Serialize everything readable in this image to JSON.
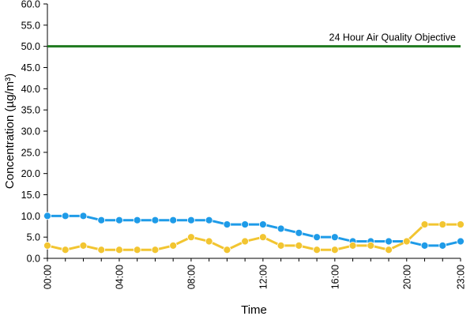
{
  "chart_data": {
    "type": "line",
    "xlabel": "Time",
    "ylabel": "Concentration (µg/m³)",
    "ylim": [
      0,
      60
    ],
    "yticks": [
      "0.0",
      "5.0",
      "10.0",
      "15.0",
      "20.0",
      "25.0",
      "30.0",
      "35.0",
      "40.0",
      "45.0",
      "50.0",
      "55.0",
      "60.0"
    ],
    "x": [
      "00:00",
      "01:00",
      "02:00",
      "03:00",
      "04:00",
      "05:00",
      "06:00",
      "07:00",
      "08:00",
      "09:00",
      "10:00",
      "11:00",
      "12:00",
      "13:00",
      "14:00",
      "15:00",
      "16:00",
      "17:00",
      "18:00",
      "19:00",
      "20:00",
      "21:00",
      "22:00",
      "23:00"
    ],
    "xtick_labels": [
      "00:00",
      "04:00",
      "08:00",
      "12:00",
      "16:00",
      "20:00",
      "23:00"
    ],
    "series": [
      {
        "color": "#1e9be8",
        "values": [
          10,
          10,
          10,
          9,
          9,
          9,
          9,
          9,
          9,
          9,
          8,
          8,
          8,
          7,
          6,
          5,
          5,
          4,
          4,
          4,
          4,
          3,
          3,
          4
        ]
      },
      {
        "color": "#f2c531",
        "values": [
          3,
          2,
          3,
          2,
          2,
          2,
          2,
          3,
          5,
          4,
          2,
          4,
          5,
          3,
          3,
          2,
          2,
          3,
          3,
          2,
          4,
          8,
          8,
          8
        ]
      }
    ],
    "reference_line": {
      "value": 50,
      "label": "24 Hour Air Quality Objective",
      "color": "#1f7a1f"
    },
    "grid": false
  }
}
